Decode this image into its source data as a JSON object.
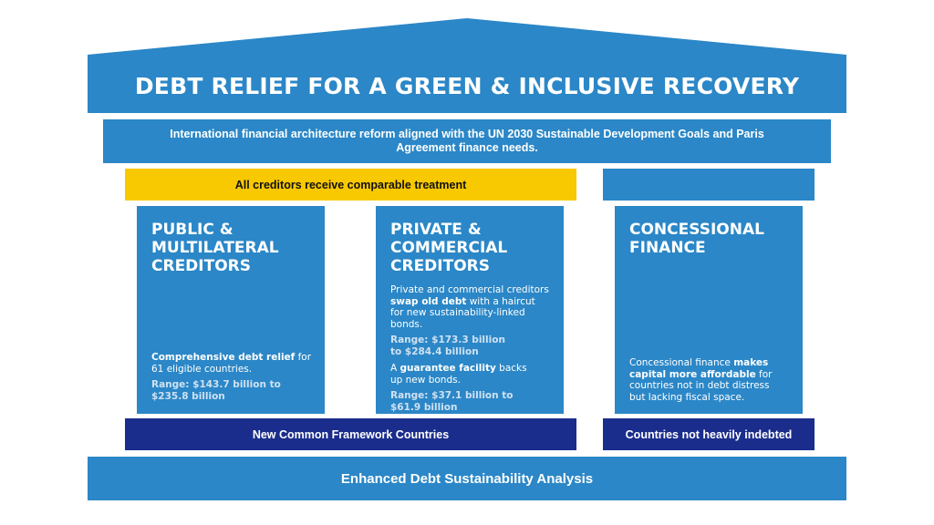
{
  "title": "DEBT RELIEF FOR A GREEN & INCLUSIVE RECOVERY",
  "banner": "International financial architecture reform aligned with the UN 2030 Sustainable Development Goals and Paris Agreement finance needs.",
  "yellow_bar": "All creditors receive comparable treatment",
  "pillars": [
    {
      "title_lines": [
        "PUBLIC &",
        "MULTILATERAL",
        "CREDITORS"
      ],
      "relief_bold": "Comprehensive debt relief",
      "relief_rest": " for 61 eligible countries.",
      "range": "Range: $143.7 billion to $235.8 billion"
    },
    {
      "title_lines": [
        "PRIVATE &",
        "COMMERCIAL",
        "CREDITORS"
      ],
      "intro_pre": "Private and commercial creditors ",
      "intro_bold": "swap old debt",
      "intro_post": " with a haircut for new sustainability-linked bonds.",
      "range1": "Range: $173.3 billion to $284.4 billion",
      "guarantee_pre": "A ",
      "guarantee_bold": "guarantee facility",
      "guarantee_post": " backs up new bonds.",
      "range2": "Range: $37.1 billion to $61.9 billion"
    },
    {
      "title_lines": [
        "CONCESSIONAL",
        "FINANCE"
      ],
      "text_pre": "Concessional finance ",
      "text_bold": "makes capital more affordable",
      "text_post": " for countries not in debt distress but lacking fiscal space."
    }
  ],
  "bottom_labels": {
    "left": "New Common Framework Countries",
    "right": "Countries not heavily indebted"
  },
  "base": "Enhanced Debt Sustainability Analysis",
  "colors": {
    "roof": "#2b87c7",
    "pillar": "#2b87c7",
    "yellow": "#f8c800",
    "navy": "#1b2d8c",
    "range_text": "#cfe1f2"
  }
}
